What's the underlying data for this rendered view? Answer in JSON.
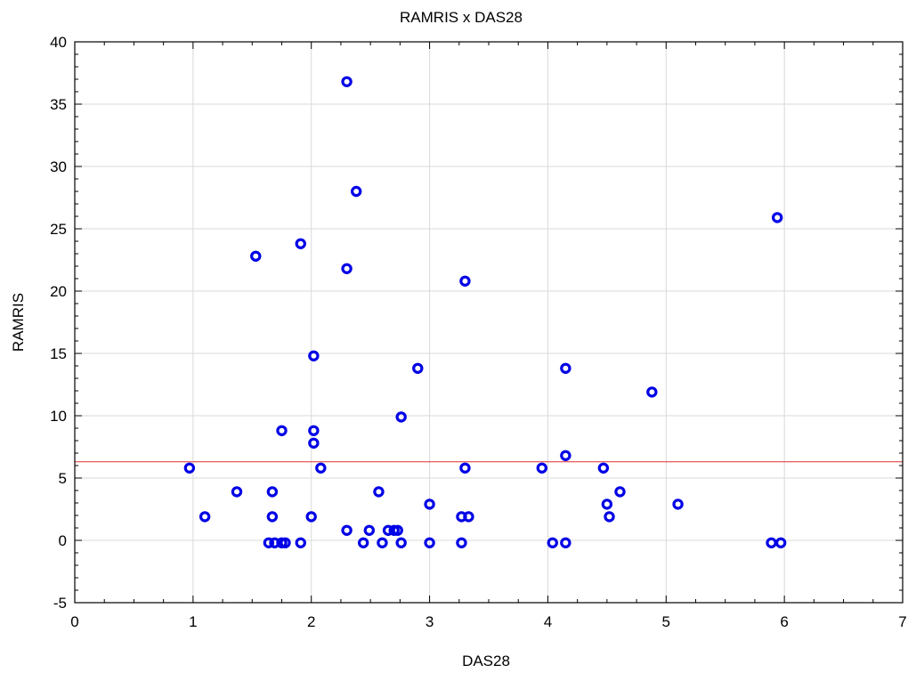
{
  "chart_data": {
    "type": "scatter",
    "title": "RAMRIS x DAS28",
    "xlabel": "DAS28",
    "ylabel": "RAMRIS",
    "xlim": [
      0,
      7
    ],
    "ylim": [
      -5,
      40
    ],
    "x_ticks": [
      0,
      1,
      2,
      3,
      4,
      5,
      6,
      7
    ],
    "y_ticks": [
      -5,
      0,
      5,
      10,
      15,
      20,
      25,
      30,
      35,
      40
    ],
    "grid": true,
    "reference_line": {
      "y": 6.3,
      "color": "#e03030"
    },
    "marker": {
      "shape": "open-circle",
      "color": "#0000e6"
    },
    "points": [
      {
        "x": 0.97,
        "y": 5.8
      },
      {
        "x": 1.1,
        "y": 1.9
      },
      {
        "x": 1.37,
        "y": 3.9
      },
      {
        "x": 1.53,
        "y": 22.8
      },
      {
        "x": 1.64,
        "y": -0.2
      },
      {
        "x": 1.67,
        "y": 3.9
      },
      {
        "x": 1.67,
        "y": 1.9
      },
      {
        "x": 1.69,
        "y": -0.2
      },
      {
        "x": 1.75,
        "y": 8.8
      },
      {
        "x": 1.75,
        "y": -0.2
      },
      {
        "x": 1.78,
        "y": -0.2
      },
      {
        "x": 1.91,
        "y": 23.8
      },
      {
        "x": 1.91,
        "y": -0.2
      },
      {
        "x": 2.0,
        "y": 1.9
      },
      {
        "x": 2.02,
        "y": 14.8
      },
      {
        "x": 2.02,
        "y": 8.8
      },
      {
        "x": 2.02,
        "y": 7.8
      },
      {
        "x": 2.08,
        "y": 5.8
      },
      {
        "x": 2.3,
        "y": 36.8
      },
      {
        "x": 2.3,
        "y": 21.8
      },
      {
        "x": 2.3,
        "y": 0.8
      },
      {
        "x": 2.38,
        "y": 28.0
      },
      {
        "x": 2.44,
        "y": -0.2
      },
      {
        "x": 2.49,
        "y": 0.8
      },
      {
        "x": 2.57,
        "y": 3.9
      },
      {
        "x": 2.6,
        "y": -0.2
      },
      {
        "x": 2.65,
        "y": 0.8
      },
      {
        "x": 2.7,
        "y": 0.8
      },
      {
        "x": 2.73,
        "y": 0.8
      },
      {
        "x": 2.76,
        "y": 9.9
      },
      {
        "x": 2.76,
        "y": -0.2
      },
      {
        "x": 2.9,
        "y": 13.8
      },
      {
        "x": 3.0,
        "y": 2.9
      },
      {
        "x": 3.0,
        "y": -0.2
      },
      {
        "x": 3.27,
        "y": 1.9
      },
      {
        "x": 3.27,
        "y": -0.2
      },
      {
        "x": 3.3,
        "y": 20.8
      },
      {
        "x": 3.3,
        "y": 5.8
      },
      {
        "x": 3.33,
        "y": 1.9
      },
      {
        "x": 3.95,
        "y": 5.8
      },
      {
        "x": 4.04,
        "y": -0.2
      },
      {
        "x": 4.15,
        "y": 13.8
      },
      {
        "x": 4.15,
        "y": 6.8
      },
      {
        "x": 4.15,
        "y": -0.2
      },
      {
        "x": 4.47,
        "y": 5.8
      },
      {
        "x": 4.5,
        "y": 2.9
      },
      {
        "x": 4.52,
        "y": 1.9
      },
      {
        "x": 4.61,
        "y": 3.9
      },
      {
        "x": 4.88,
        "y": 11.9
      },
      {
        "x": 5.1,
        "y": 2.9
      },
      {
        "x": 5.89,
        "y": -0.2
      },
      {
        "x": 5.94,
        "y": 25.9
      },
      {
        "x": 5.97,
        "y": -0.2
      }
    ]
  }
}
